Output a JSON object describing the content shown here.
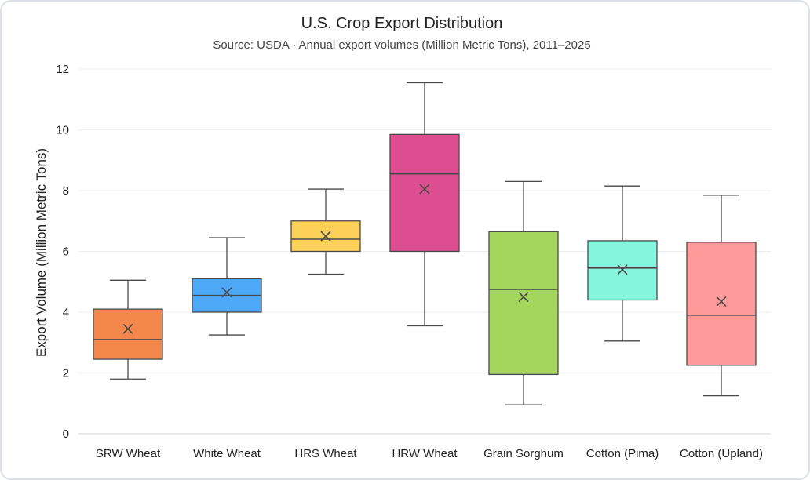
{
  "chart_data": {
    "type": "box",
    "title": "U.S. Crop Export Distribution",
    "subtitle": "Source: USDA · Annual export volumes (Million Metric Tons), 2011–2025",
    "xlabel": "",
    "ylabel": "Export Volume (Million Metric Tons)",
    "ylim": [
      0,
      12
    ],
    "yticks": [
      0,
      2,
      4,
      6,
      8,
      10,
      12
    ],
    "ytick_labels": [
      "0",
      "2",
      "4",
      "6",
      "8",
      "10",
      "12"
    ],
    "grid": true,
    "legend": "none",
    "categories": [
      "SRW Wheat",
      "White Wheat",
      "HRS Wheat",
      "HRW Wheat",
      "Grain Sorghum",
      "Cotton (Pima)",
      "Cotton (Upland)"
    ],
    "boxes": [
      {
        "min": 1.8,
        "q1": 2.45,
        "median": 3.1,
        "q3": 4.1,
        "max": 5.05,
        "mean": 3.45,
        "color": "#f4874b"
      },
      {
        "min": 3.25,
        "q1": 4.0,
        "median": 4.55,
        "q3": 5.1,
        "max": 6.45,
        "mean": 4.65,
        "color": "#4da8f7"
      },
      {
        "min": 5.25,
        "q1": 6.0,
        "median": 6.4,
        "q3": 7.0,
        "max": 8.05,
        "mean": 6.5,
        "color": "#fdd05a"
      },
      {
        "min": 3.55,
        "q1": 6.0,
        "median": 8.55,
        "q3": 9.85,
        "max": 11.55,
        "mean": 8.05,
        "color": "#dd4e91"
      },
      {
        "min": 0.95,
        "q1": 1.95,
        "median": 4.75,
        "q3": 6.65,
        "max": 8.3,
        "mean": 4.5,
        "color": "#a4d65e"
      },
      {
        "min": 3.05,
        "q1": 4.4,
        "median": 5.45,
        "q3": 6.35,
        "max": 8.15,
        "mean": 5.4,
        "color": "#86f5dd"
      },
      {
        "min": 1.25,
        "q1": 2.25,
        "median": 3.9,
        "q3": 6.3,
        "max": 7.85,
        "mean": 4.35,
        "color": "#fe9a99"
      }
    ]
  }
}
